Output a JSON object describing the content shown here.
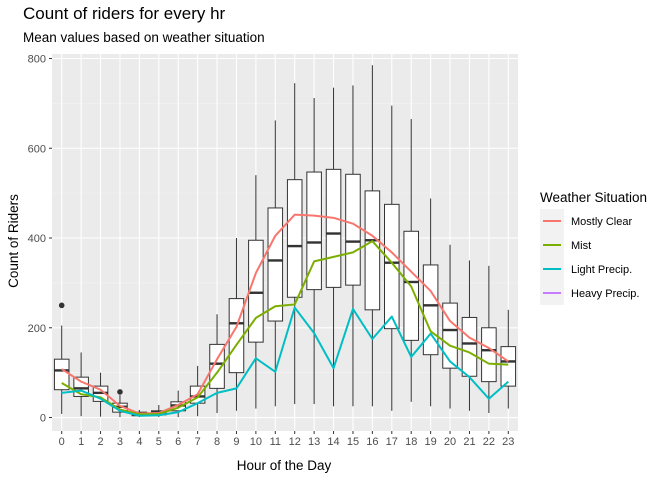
{
  "chart_data": {
    "type": "boxplot+line",
    "title": "Count of riders for every hr",
    "subtitle": "Mean values based on weather situation",
    "xlabel": "Hour of the Day",
    "ylabel": "Count of Riders",
    "ylim": [
      -30,
      810
    ],
    "yticks": [
      0,
      200,
      400,
      600,
      800
    ],
    "categories": [
      "0",
      "1",
      "2",
      "3",
      "4",
      "5",
      "6",
      "7",
      "8",
      "9",
      "10",
      "11",
      "12",
      "13",
      "14",
      "15",
      "16",
      "17",
      "18",
      "19",
      "20",
      "21",
      "22",
      "23"
    ],
    "grid": true,
    "legend": {
      "title": "Weather Situation",
      "position": "right"
    },
    "boxes": [
      {
        "x": "0",
        "lw": 8,
        "q1": 62,
        "med": 105,
        "q3": 130,
        "uw": 205,
        "outliers": [
          250
        ]
      },
      {
        "x": "1",
        "lw": 3,
        "q1": 47,
        "med": 65,
        "q3": 90,
        "uw": 145,
        "outliers": []
      },
      {
        "x": "2",
        "lw": 2,
        "q1": 36,
        "med": 55,
        "q3": 70,
        "uw": 100,
        "outliers": []
      },
      {
        "x": "3",
        "lw": 1,
        "q1": 12,
        "med": 24,
        "q3": 32,
        "uw": 50,
        "outliers": [
          57
        ]
      },
      {
        "x": "4",
        "lw": 1,
        "q1": 4,
        "med": 7,
        "q3": 12,
        "uw": 17,
        "outliers": []
      },
      {
        "x": "5",
        "lw": 1,
        "q1": 6,
        "med": 12,
        "q3": 15,
        "uw": 28,
        "outliers": []
      },
      {
        "x": "6",
        "lw": 1,
        "q1": 15,
        "med": 27,
        "q3": 35,
        "uw": 60,
        "outliers": []
      },
      {
        "x": "7",
        "lw": 3,
        "q1": 32,
        "med": 47,
        "q3": 70,
        "uw": 115,
        "outliers": []
      },
      {
        "x": "8",
        "lw": 10,
        "q1": 65,
        "med": 120,
        "q3": 163,
        "uw": 230,
        "outliers": []
      },
      {
        "x": "9",
        "lw": 15,
        "q1": 100,
        "med": 210,
        "q3": 265,
        "uw": 400,
        "outliers": []
      },
      {
        "x": "10",
        "lw": 20,
        "q1": 168,
        "med": 278,
        "q3": 395,
        "uw": 540,
        "outliers": []
      },
      {
        "x": "11",
        "lw": 25,
        "q1": 215,
        "med": 350,
        "q3": 467,
        "uw": 662,
        "outliers": []
      },
      {
        "x": "12",
        "lw": 30,
        "q1": 268,
        "med": 382,
        "q3": 530,
        "uw": 745,
        "outliers": []
      },
      {
        "x": "13",
        "lw": 30,
        "q1": 285,
        "med": 390,
        "q3": 547,
        "uw": 712,
        "outliers": []
      },
      {
        "x": "14",
        "lw": 25,
        "q1": 290,
        "med": 410,
        "q3": 553,
        "uw": 735,
        "outliers": []
      },
      {
        "x": "15",
        "lw": 25,
        "q1": 295,
        "med": 392,
        "q3": 542,
        "uw": 740,
        "outliers": []
      },
      {
        "x": "16",
        "lw": 25,
        "q1": 240,
        "med": 395,
        "q3": 505,
        "uw": 785,
        "outliers": []
      },
      {
        "x": "17",
        "lw": 15,
        "q1": 198,
        "med": 345,
        "q3": 475,
        "uw": 695,
        "outliers": []
      },
      {
        "x": "18",
        "lw": 35,
        "q1": 172,
        "med": 302,
        "q3": 415,
        "uw": 665,
        "outliers": []
      },
      {
        "x": "19",
        "lw": 25,
        "q1": 140,
        "med": 250,
        "q3": 340,
        "uw": 488,
        "outliers": []
      },
      {
        "x": "20",
        "lw": 20,
        "q1": 110,
        "med": 195,
        "q3": 255,
        "uw": 385,
        "outliers": []
      },
      {
        "x": "21",
        "lw": 15,
        "q1": 92,
        "med": 165,
        "q3": 223,
        "uw": 350,
        "outliers": []
      },
      {
        "x": "22",
        "lw": 10,
        "q1": 80,
        "med": 150,
        "q3": 200,
        "uw": 338,
        "outliers": []
      },
      {
        "x": "23",
        "lw": 20,
        "q1": 70,
        "med": 125,
        "q3": 158,
        "uw": 240,
        "outliers": []
      }
    ],
    "series": [
      {
        "name": "Mostly Clear",
        "color": "#F8766D",
        "values": [
          108,
          80,
          62,
          26,
          9,
          10,
          28,
          52,
          130,
          202,
          322,
          405,
          452,
          450,
          445,
          432,
          405,
          368,
          325,
          282,
          215,
          178,
          155,
          125
        ]
      },
      {
        "name": "Mist",
        "color": "#7CAE00",
        "values": [
          77,
          52,
          45,
          18,
          7,
          8,
          22,
          45,
          100,
          162,
          222,
          248,
          252,
          348,
          358,
          368,
          393,
          345,
          292,
          192,
          160,
          145,
          120,
          118
        ]
      },
      {
        "name": "Light Precip.",
        "color": "#00BFC4",
        "values": [
          55,
          60,
          42,
          15,
          4,
          5,
          12,
          32,
          55,
          65,
          132,
          102,
          245,
          188,
          110,
          242,
          175,
          225,
          135,
          187,
          125,
          90,
          42,
          80
        ]
      },
      {
        "name": "Heavy Precip.",
        "color": "#C77CFF",
        "values": []
      }
    ]
  }
}
